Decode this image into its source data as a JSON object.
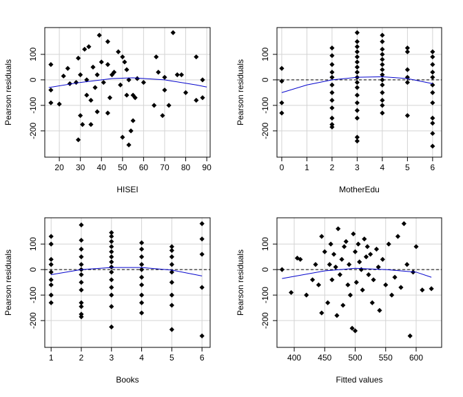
{
  "chart_data": [
    {
      "type": "scatter",
      "xlabel": "HISEI",
      "ylabel": "Pearson residuals",
      "color": "#000000",
      "grid": true,
      "zero_line": false,
      "xlim": [
        13.1,
        91.6
      ],
      "xticks": [
        20,
        30,
        40,
        50,
        60,
        70,
        80,
        90
      ],
      "ylim": [
        -303,
        205
      ],
      "yticks": [
        -200,
        -100,
        0,
        100
      ],
      "x": [
        16,
        16,
        16,
        20,
        22,
        24,
        25,
        28,
        29,
        29,
        30,
        30,
        31,
        32,
        33,
        33,
        34,
        35,
        35,
        36,
        37,
        38,
        38,
        39,
        40,
        41,
        43,
        43,
        43,
        44,
        45,
        46,
        48,
        49,
        50,
        50,
        51,
        52,
        52,
        53,
        53,
        54,
        55,
        55,
        56,
        57,
        60,
        65,
        66,
        67,
        69,
        70,
        70,
        72,
        74,
        76,
        78,
        80,
        85,
        85,
        88,
        88
      ],
      "values": [
        60,
        -40,
        -90,
        -95,
        15,
        45,
        -15,
        -10,
        -235,
        85,
        -140,
        20,
        -175,
        120,
        -60,
        0,
        130,
        -175,
        -80,
        50,
        -30,
        20,
        -125,
        175,
        70,
        -10,
        150,
        -130,
        60,
        -70,
        20,
        30,
        110,
        -20,
        90,
        -225,
        70,
        40,
        -60,
        -255,
        0,
        -200,
        -60,
        -160,
        -70,
        5,
        -10,
        -100,
        90,
        30,
        -140,
        10,
        -40,
        -100,
        185,
        20,
        20,
        -50,
        90,
        -80,
        -70,
        0
      ],
      "smooth": {
        "color": "#0000cc",
        "x": [
          15,
          30,
          45,
          55,
          70,
          85,
          90
        ],
        "values": [
          -30,
          -10,
          5,
          8,
          0,
          -20,
          -28
        ]
      }
    },
    {
      "type": "scatter",
      "xlabel": "MotherEdu",
      "ylabel": "Pearson residuals",
      "color": "#000000",
      "grid": true,
      "zero_line": true,
      "xlim": [
        -0.19,
        6.36
      ],
      "xticks": [
        0,
        1,
        2,
        3,
        4,
        5,
        6
      ],
      "ylim": [
        -303,
        205
      ],
      "yticks": [
        -200,
        -100,
        0,
        100
      ],
      "x": [
        0,
        0,
        0,
        0,
        2,
        2,
        2,
        2,
        2,
        2,
        2,
        2,
        2,
        2,
        2,
        2,
        3,
        3,
        3,
        3,
        3,
        3,
        3,
        3,
        3,
        3,
        3,
        3,
        3,
        3,
        3,
        3,
        3,
        4,
        4,
        4,
        4,
        4,
        4,
        4,
        4,
        4,
        4,
        4,
        4,
        4,
        4,
        5,
        5,
        5,
        5,
        5,
        5,
        6,
        6,
        6,
        6,
        6,
        6,
        6,
        6,
        6,
        6,
        6,
        6
      ],
      "values": [
        45,
        -5,
        -90,
        -130,
        125,
        95,
        60,
        30,
        10,
        -20,
        -50,
        -80,
        -110,
        -150,
        -175,
        -185,
        185,
        150,
        130,
        110,
        90,
        70,
        50,
        30,
        10,
        -10,
        -30,
        -60,
        -90,
        -120,
        -150,
        -225,
        -240,
        175,
        150,
        120,
        100,
        80,
        60,
        40,
        20,
        0,
        -20,
        -50,
        -80,
        -100,
        -130,
        125,
        110,
        40,
        10,
        -10,
        -140,
        110,
        90,
        60,
        30,
        10,
        -20,
        -50,
        -90,
        -150,
        -170,
        -210,
        -260
      ],
      "smooth": {
        "color": "#0000cc",
        "x": [
          0,
          1,
          2,
          3,
          4,
          5,
          6
        ],
        "values": [
          -50,
          -20,
          0,
          10,
          12,
          5,
          -15
        ]
      }
    },
    {
      "type": "scatter",
      "xlabel": "Books",
      "ylabel": "Pearson residuals",
      "color": "#000000",
      "grid": true,
      "zero_line": true,
      "xlim": [
        0.79,
        6.27
      ],
      "xticks": [
        1,
        2,
        3,
        4,
        5,
        6
      ],
      "ylim": [
        -305,
        203
      ],
      "yticks": [
        -200,
        -100,
        0,
        100
      ],
      "x": [
        1,
        1,
        1,
        1,
        1,
        1,
        1,
        1,
        1,
        2,
        2,
        2,
        2,
        2,
        2,
        2,
        2,
        2,
        2,
        2,
        2,
        2,
        3,
        3,
        3,
        3,
        3,
        3,
        3,
        3,
        3,
        3,
        3,
        3,
        3,
        3,
        4,
        4,
        4,
        4,
        4,
        4,
        4,
        4,
        4,
        4,
        5,
        5,
        5,
        5,
        5,
        5,
        5,
        5,
        5,
        6,
        6,
        6,
        6,
        6
      ],
      "values": [
        130,
        100,
        40,
        20,
        -10,
        -40,
        -60,
        -100,
        -130,
        175,
        115,
        80,
        50,
        20,
        0,
        -20,
        -50,
        -80,
        -130,
        -145,
        -175,
        -185,
        145,
        130,
        110,
        90,
        70,
        50,
        30,
        10,
        -10,
        -40,
        -70,
        -100,
        -145,
        -225,
        105,
        80,
        50,
        20,
        0,
        -30,
        -60,
        -100,
        -130,
        -170,
        90,
        75,
        50,
        20,
        -10,
        -50,
        -100,
        -140,
        -235,
        180,
        120,
        60,
        -70,
        -260
      ],
      "smooth": {
        "color": "#0000cc",
        "x": [
          1,
          2,
          3,
          4,
          5,
          6
        ],
        "values": [
          -20,
          0,
          8,
          8,
          -2,
          -25
        ]
      }
    },
    {
      "type": "scatter",
      "xlabel": "Fitted values",
      "ylabel": "Pearson residuals",
      "color": "#000000",
      "grid": true,
      "zero_line": true,
      "xlim": [
        371.7,
        641.8
      ],
      "xticks": [
        400,
        450,
        500,
        550,
        600
      ],
      "ylim": [
        -305,
        203
      ],
      "yticks": [
        -200,
        -100,
        0,
        100
      ],
      "x": [
        380,
        395,
        405,
        410,
        420,
        430,
        435,
        440,
        445,
        445,
        450,
        455,
        458,
        460,
        462,
        465,
        468,
        470,
        472,
        475,
        478,
        480,
        482,
        485,
        488,
        490,
        492,
        495,
        497,
        500,
        500,
        502,
        505,
        507,
        510,
        512,
        515,
        518,
        520,
        522,
        525,
        528,
        530,
        535,
        538,
        540,
        545,
        550,
        555,
        560,
        565,
        570,
        575,
        580,
        585,
        590,
        595,
        600,
        610,
        625
      ],
      "values": [
        0,
        -90,
        45,
        40,
        -100,
        -40,
        20,
        -60,
        130,
        -170,
        70,
        -130,
        20,
        100,
        -40,
        60,
        10,
        -180,
        160,
        -20,
        40,
        -140,
        90,
        110,
        -60,
        20,
        -100,
        -230,
        140,
        -240,
        70,
        -50,
        100,
        30,
        0,
        -80,
        120,
        50,
        90,
        -20,
        60,
        -130,
        -40,
        80,
        10,
        -160,
        40,
        -60,
        100,
        -100,
        -30,
        130,
        -70,
        180,
        20,
        -260,
        -10,
        90,
        -80,
        -75
      ],
      "smooth": {
        "color": "#0000cc",
        "x": [
          380,
          450,
          500,
          550,
          600,
          625
        ],
        "values": [
          -35,
          -5,
          5,
          0,
          -10,
          -30
        ]
      }
    }
  ]
}
